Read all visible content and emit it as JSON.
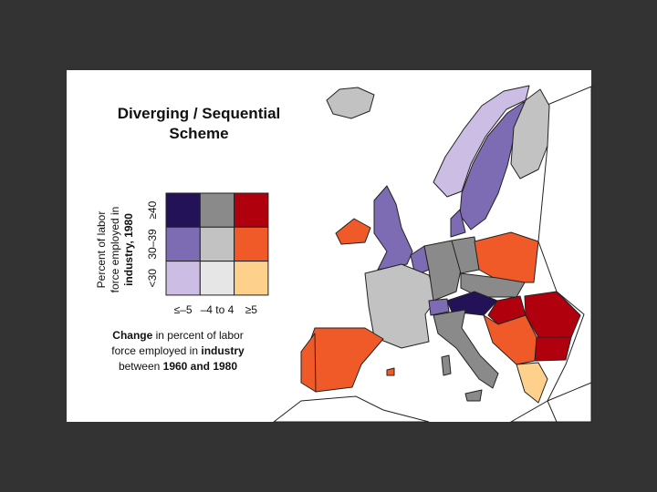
{
  "title": [
    "Diverging / Sequential",
    "Scheme"
  ],
  "legend": {
    "y_label": [
      "Percent of labor",
      "force employed in",
      "industry, 1980"
    ],
    "row_labels": [
      "≥40",
      "30–39",
      "<30"
    ],
    "column_labels": [
      "≤–5",
      "–4 to 4",
      "≥5"
    ],
    "colors": [
      [
        "#241259",
        "#8a8a8a",
        "#b0000e"
      ],
      [
        "#7d6bb4",
        "#c2c2c2",
        "#f05a28"
      ],
      [
        "#cbbde3",
        "#e6e6e6",
        "#fdd08c"
      ]
    ]
  },
  "caption": [
    [
      {
        "text": "Change",
        "bold": true
      },
      {
        "text": " in percent of labor",
        "bold": false
      }
    ],
    [
      {
        "text": "force employed in ",
        "bold": false
      },
      {
        "text": "industry",
        "bold": true
      }
    ],
    [
      {
        "text": "between ",
        "bold": false
      },
      {
        "text": "1960 and 1980",
        "bold": true
      }
    ]
  ]
}
